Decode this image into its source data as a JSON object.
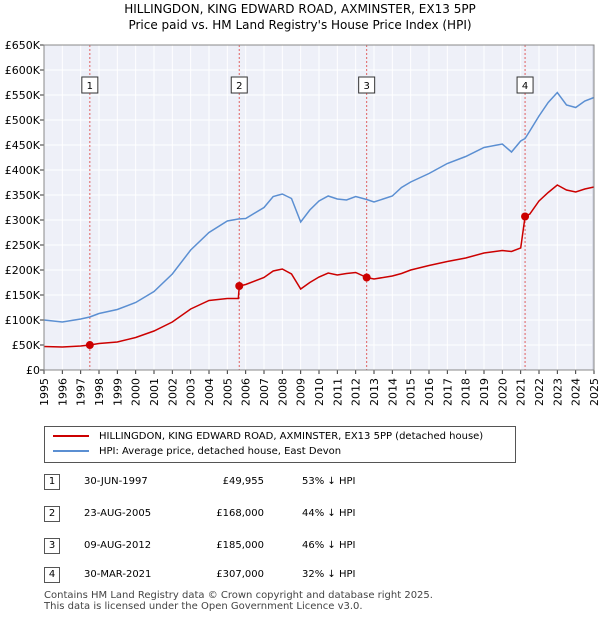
{
  "title": "HILLINGDON, KING EDWARD ROAD, AXMINSTER, EX13 5PP",
  "subtitle": "Price paid vs. HM Land Registry's House Price Index (HPI)",
  "chart_data": {
    "type": "line",
    "xlim": [
      1995,
      2025
    ],
    "ylim": [
      0,
      650000
    ],
    "y_ticks": [
      0,
      50000,
      100000,
      150000,
      200000,
      250000,
      300000,
      350000,
      400000,
      450000,
      500000,
      550000,
      600000,
      650000
    ],
    "y_tick_labels": [
      "£0",
      "£50K",
      "£100K",
      "£150K",
      "£200K",
      "£250K",
      "£300K",
      "£350K",
      "£400K",
      "£450K",
      "£500K",
      "£550K",
      "£600K",
      "£650K"
    ],
    "x_ticks": [
      1995,
      1996,
      1997,
      1998,
      1999,
      2000,
      2001,
      2002,
      2003,
      2004,
      2005,
      2006,
      2007,
      2008,
      2009,
      2010,
      2011,
      2012,
      2013,
      2014,
      2015,
      2016,
      2017,
      2018,
      2019,
      2020,
      2021,
      2022,
      2023,
      2024,
      2025
    ],
    "x_tick_labels": [
      "1995",
      "1996",
      "1997",
      "1998",
      "1999",
      "2000",
      "2001",
      "2002",
      "2003",
      "2004",
      "2005",
      "2006",
      "2007",
      "2008",
      "2009",
      "2010",
      "2011",
      "2012",
      "2013",
      "2014",
      "2015",
      "2016",
      "2017",
      "2018",
      "2019",
      "2020",
      "2021",
      "2022",
      "2023",
      "2024",
      "2025"
    ],
    "grid": true,
    "series": [
      {
        "name": "HILLINGDON, KING EDWARD ROAD, AXMINSTER, EX13 5PP (detached house)",
        "color": "#cc0000",
        "points": [
          [
            1995.0,
            47000
          ],
          [
            1996.0,
            46000
          ],
          [
            1997.0,
            48000
          ],
          [
            1997.5,
            49955
          ],
          [
            1998.0,
            53000
          ],
          [
            1999.0,
            56000
          ],
          [
            2000.0,
            65000
          ],
          [
            2001.0,
            78000
          ],
          [
            2002.0,
            96000
          ],
          [
            2003.0,
            122000
          ],
          [
            2004.0,
            139000
          ],
          [
            2005.0,
            143000
          ],
          [
            2005.6,
            143000
          ],
          [
            2005.65,
            168000
          ],
          [
            2006.0,
            171000
          ],
          [
            2007.0,
            185000
          ],
          [
            2007.5,
            198000
          ],
          [
            2008.0,
            202000
          ],
          [
            2008.5,
            192000
          ],
          [
            2009.0,
            162000
          ],
          [
            2009.5,
            175000
          ],
          [
            2010.0,
            186000
          ],
          [
            2010.5,
            194000
          ],
          [
            2011.0,
            190000
          ],
          [
            2011.5,
            193000
          ],
          [
            2012.0,
            195000
          ],
          [
            2012.6,
            185000
          ],
          [
            2013.0,
            182000
          ],
          [
            2014.0,
            188000
          ],
          [
            2014.5,
            193000
          ],
          [
            2015.0,
            200000
          ],
          [
            2016.0,
            209000
          ],
          [
            2017.0,
            217000
          ],
          [
            2018.0,
            224000
          ],
          [
            2019.0,
            234000
          ],
          [
            2020.0,
            239000
          ],
          [
            2020.5,
            237000
          ],
          [
            2021.0,
            244000
          ],
          [
            2021.24,
            307000
          ],
          [
            2021.5,
            312000
          ],
          [
            2022.0,
            338000
          ],
          [
            2022.5,
            355000
          ],
          [
            2023.0,
            370000
          ],
          [
            2023.5,
            360000
          ],
          [
            2024.0,
            356000
          ],
          [
            2024.5,
            362000
          ],
          [
            2025.0,
            366000
          ]
        ]
      },
      {
        "name": "HPI: Average price, detached house, East Devon",
        "color": "#5b8fd2",
        "points": [
          [
            1995.0,
            100000
          ],
          [
            1996.0,
            96000
          ],
          [
            1997.0,
            102000
          ],
          [
            1997.5,
            106000
          ],
          [
            1998.0,
            113000
          ],
          [
            1999.0,
            121000
          ],
          [
            2000.0,
            135000
          ],
          [
            2001.0,
            157000
          ],
          [
            2002.0,
            192000
          ],
          [
            2003.0,
            240000
          ],
          [
            2004.0,
            275000
          ],
          [
            2005.0,
            298000
          ],
          [
            2005.6,
            302000
          ],
          [
            2006.0,
            303000
          ],
          [
            2007.0,
            325000
          ],
          [
            2007.5,
            347000
          ],
          [
            2008.0,
            352000
          ],
          [
            2008.5,
            343000
          ],
          [
            2009.0,
            296000
          ],
          [
            2009.5,
            320000
          ],
          [
            2010.0,
            338000
          ],
          [
            2010.5,
            348000
          ],
          [
            2011.0,
            342000
          ],
          [
            2011.5,
            340000
          ],
          [
            2012.0,
            347000
          ],
          [
            2012.6,
            341000
          ],
          [
            2013.0,
            336000
          ],
          [
            2014.0,
            348000
          ],
          [
            2014.5,
            365000
          ],
          [
            2015.0,
            376000
          ],
          [
            2016.0,
            393000
          ],
          [
            2017.0,
            413000
          ],
          [
            2018.0,
            427000
          ],
          [
            2019.0,
            445000
          ],
          [
            2020.0,
            452000
          ],
          [
            2020.5,
            436000
          ],
          [
            2021.0,
            458000
          ],
          [
            2021.24,
            463000
          ],
          [
            2021.5,
            478000
          ],
          [
            2022.0,
            508000
          ],
          [
            2022.5,
            535000
          ],
          [
            2023.0,
            555000
          ],
          [
            2023.5,
            530000
          ],
          [
            2024.0,
            525000
          ],
          [
            2024.5,
            538000
          ],
          [
            2025.0,
            545000
          ]
        ]
      }
    ],
    "sales": [
      {
        "label": "1",
        "x": 1997.5,
        "y": 49955
      },
      {
        "label": "2",
        "x": 2005.65,
        "y": 168000
      },
      {
        "label": "3",
        "x": 2012.6,
        "y": 185000
      },
      {
        "label": "4",
        "x": 2021.24,
        "y": 307000
      }
    ]
  },
  "legend": [
    {
      "label": "HILLINGDON, KING EDWARD ROAD, AXMINSTER, EX13 5PP (detached house)",
      "color": "#cc0000"
    },
    {
      "label": "HPI: Average price, detached house, East Devon",
      "color": "#5b8fd2"
    }
  ],
  "table": [
    {
      "num": "1",
      "date": "30-JUN-1997",
      "price": "£49,955",
      "hpi": "53% ↓ HPI"
    },
    {
      "num": "2",
      "date": "23-AUG-2005",
      "price": "£168,000",
      "hpi": "44% ↓ HPI"
    },
    {
      "num": "3",
      "date": "09-AUG-2012",
      "price": "£185,000",
      "hpi": "46% ↓ HPI"
    },
    {
      "num": "4",
      "date": "30-MAR-2021",
      "price": "£307,000",
      "hpi": "32% ↓ HPI"
    }
  ],
  "footer": {
    "line1": "Contains HM Land Registry data © Crown copyright and database right 2025.",
    "line2": "This data is licensed under the Open Government Licence v3.0."
  }
}
